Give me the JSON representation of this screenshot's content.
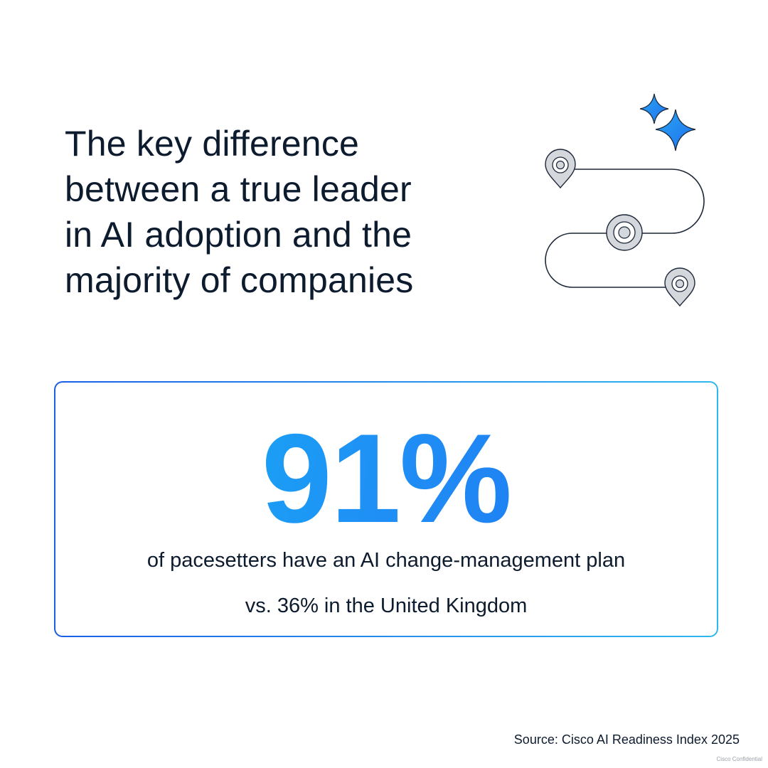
{
  "headline": {
    "lines": [
      "The key difference",
      "between a true leader",
      "in AI adoption and the",
      "majority of companies"
    ]
  },
  "illustration": {
    "icons": [
      "location-pin-icon",
      "sparkle-icon",
      "winding-path-icon"
    ],
    "colors": {
      "path_stroke": "#1c2738",
      "pin_fill": "#d4d7dc",
      "sparkle_blue": "#1f7ff0",
      "sparkle_light": "#2aa6f2"
    }
  },
  "stat": {
    "value": "91%",
    "line1": "of pacesetters have an AI change-management plan",
    "line2": "vs. 36% in the United Kingdom"
  },
  "footer": {
    "source": "Source: Cisco AI Readiness Index 2025",
    "confidential": "Cisco Confidential"
  },
  "colors": {
    "text": "#0d1b2e",
    "accent_start": "#14b6f5",
    "accent_end": "#1f6ff0",
    "border_start": "#1a5fe6",
    "border_end": "#2fb8ef"
  }
}
